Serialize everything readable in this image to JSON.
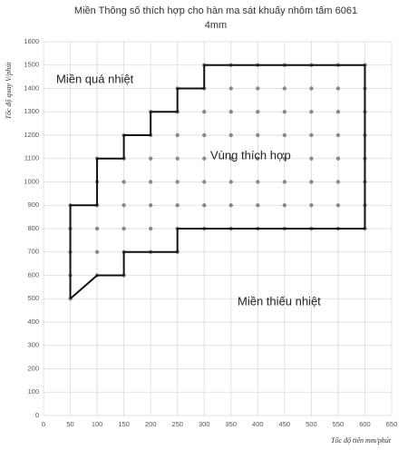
{
  "chart_data": {
    "type": "scatter",
    "title": [
      "Miền Thông số thích hợp cho hàn ma sát khuấy nhôm tấm 6061",
      "4mm"
    ],
    "x_label": "Tốc độ tiến mm/phút",
    "y_label": "Tốc độ quay V/phút",
    "annotations": [
      "Miền quá nhiệt",
      "Vùng thích hợp",
      "Miền thiếu nhiệt"
    ],
    "xlim": [
      0,
      650
    ],
    "xticks": [
      0,
      50,
      100,
      150,
      200,
      250,
      300,
      350,
      400,
      450,
      500,
      550,
      600,
      650
    ],
    "ylim": [
      0,
      1600
    ],
    "yticks": [
      0,
      100,
      200,
      300,
      400,
      500,
      600,
      700,
      800,
      900,
      1000,
      1100,
      1200,
      1300,
      1400,
      1500,
      1600
    ],
    "grid": true,
    "series": [
      {
        "color": "#8a8a8a",
        "mode": "markers",
        "x": [
          50,
          50,
          50,
          50,
          50,
          100,
          100,
          100,
          100,
          100,
          100,
          150,
          150,
          150,
          150,
          150,
          150,
          150,
          200,
          200,
          200,
          200,
          200,
          200,
          200,
          250,
          250,
          250,
          250,
          250,
          250,
          250,
          250,
          300,
          300,
          300,
          300,
          300,
          300,
          300,
          300,
          350,
          350,
          350,
          350,
          350,
          350,
          350,
          350,
          400,
          400,
          400,
          400,
          400,
          400,
          400,
          400,
          450,
          450,
          450,
          450,
          450,
          450,
          450,
          450,
          500,
          500,
          500,
          500,
          500,
          500,
          500,
          500,
          550,
          550,
          550,
          550,
          550,
          550,
          550,
          550,
          600,
          600,
          600,
          600,
          600,
          600,
          600,
          600
        ],
        "y": [
          500,
          600,
          700,
          800,
          900,
          600,
          700,
          800,
          900,
          1000,
          1100,
          600,
          700,
          800,
          900,
          1000,
          1100,
          1200,
          700,
          800,
          900,
          1000,
          1100,
          1200,
          1300,
          700,
          800,
          900,
          1000,
          1100,
          1200,
          1300,
          1400,
          800,
          900,
          1000,
          1100,
          1200,
          1300,
          1400,
          1500,
          800,
          900,
          1000,
          1100,
          1200,
          1300,
          1400,
          1500,
          800,
          900,
          1000,
          1100,
          1200,
          1300,
          1400,
          1500,
          800,
          900,
          1000,
          1100,
          1200,
          1300,
          1400,
          1500,
          800,
          900,
          1000,
          1100,
          1200,
          1300,
          1400,
          1500,
          800,
          900,
          1000,
          1100,
          1200,
          1300,
          1400,
          1500,
          800,
          900,
          1000,
          1100,
          1200,
          1300,
          1400,
          1500
        ]
      },
      {
        "color": "#111111",
        "mode": "line",
        "x": [
          50,
          50,
          100,
          100,
          150,
          150,
          200,
          200,
          250,
          250,
          300,
          300,
          600,
          600,
          250,
          250,
          150,
          150,
          100,
          50
        ],
        "y": [
          500,
          900,
          900,
          1100,
          1100,
          1200,
          1200,
          1300,
          1300,
          1400,
          1400,
          1500,
          1500,
          800,
          800,
          700,
          700,
          600,
          600,
          500
        ]
      }
    ]
  }
}
